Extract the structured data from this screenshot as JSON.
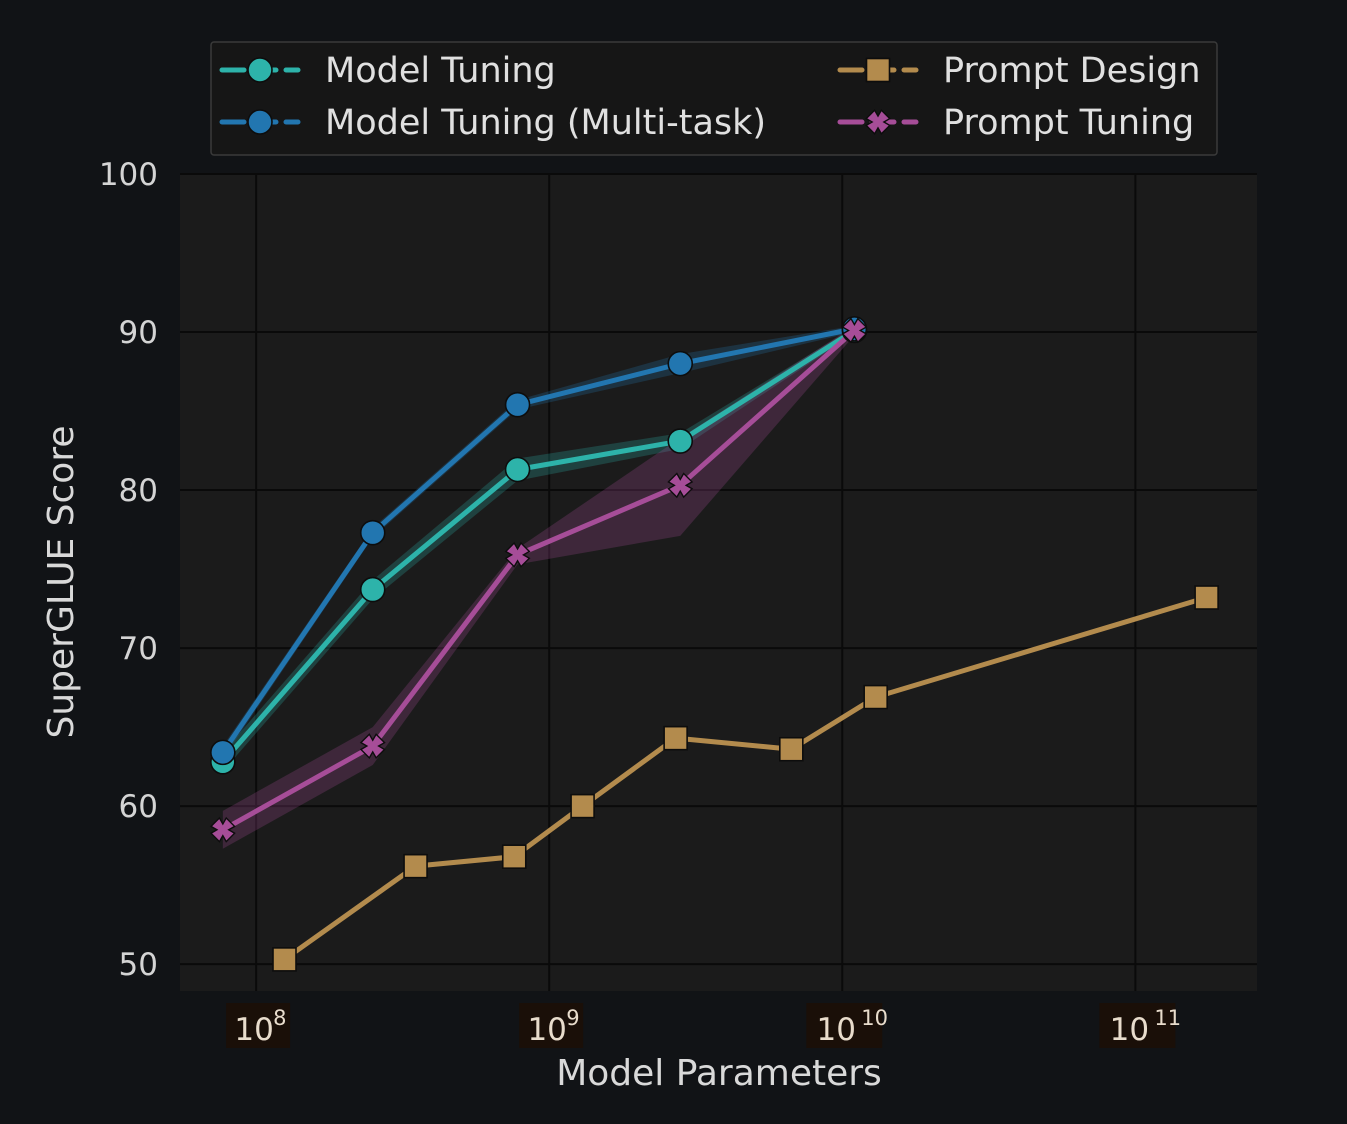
{
  "chart_data": {
    "type": "line",
    "xlabel": "Model Parameters",
    "ylabel": "SuperGLUE Score",
    "xscale": "log",
    "xlim": [
      55000000,
      260000000000
    ],
    "ylim": [
      48.3,
      100
    ],
    "grid": true,
    "legend_position": "top, above plot",
    "x_ticks": [
      {
        "value": 100000000,
        "base": "10",
        "exp": "8"
      },
      {
        "value": 1000000000,
        "base": "10",
        "exp": "9"
      },
      {
        "value": 10000000000,
        "base": "10",
        "exp": "10"
      },
      {
        "value": 100000000000,
        "base": "10",
        "exp": "11"
      }
    ],
    "y_ticks": [
      {
        "value": 50,
        "label": "50"
      },
      {
        "value": 60,
        "label": "60"
      },
      {
        "value": 70,
        "label": "70"
      },
      {
        "value": 80,
        "label": "80"
      },
      {
        "value": 90,
        "label": "90"
      },
      {
        "value": 100,
        "label": "100"
      }
    ],
    "series": [
      {
        "name": "Model Tuning",
        "color": "#2db3aa",
        "marker": "circle",
        "x": [
          77000000,
          250000000,
          780000000,
          2800000000,
          11000000000
        ],
        "y": [
          62.8,
          73.7,
          81.3,
          83.1,
          90.1
        ],
        "band_low": [
          62.2,
          73.1,
          80.6,
          82.6,
          89.9
        ],
        "band_high": [
          63.4,
          74.3,
          82.0,
          83.6,
          90.3
        ]
      },
      {
        "name": "Model Tuning (Multi-task)",
        "color": "#2276b0",
        "marker": "circle",
        "x": [
          77000000,
          250000000,
          780000000,
          2800000000,
          11000000000
        ],
        "y": [
          63.4,
          77.3,
          85.4,
          88.0,
          90.2
        ],
        "band_low": [
          63.0,
          77.0,
          85.1,
          87.4,
          90.0
        ],
        "band_high": [
          63.8,
          77.6,
          85.7,
          88.6,
          90.4
        ]
      },
      {
        "name": "Prompt Design",
        "color": "#b38b4d",
        "marker": "square",
        "x": [
          125000000,
          350000000,
          760000000,
          1300000000,
          2700000000,
          6700000000,
          13000000000,
          175000000000
        ],
        "y": [
          50.3,
          56.2,
          56.8,
          60.0,
          64.3,
          63.6,
          66.9,
          73.2
        ]
      },
      {
        "name": "Prompt Tuning",
        "color": "#a64d98",
        "marker": "x",
        "x": [
          77000000,
          250000000,
          780000000,
          2800000000,
          11000000000
        ],
        "y": [
          58.5,
          63.8,
          75.9,
          80.3,
          90.1
        ],
        "band_low": [
          57.3,
          62.6,
          75.3,
          77.1,
          89.8
        ],
        "band_high": [
          59.7,
          65.0,
          76.3,
          83.3,
          90.4
        ]
      }
    ],
    "legend": [
      {
        "label": "Model Tuning",
        "series": 0
      },
      {
        "label": "Prompt Design",
        "series": 2
      },
      {
        "label": "Model Tuning (Multi-task)",
        "series": 1
      },
      {
        "label": "Prompt Tuning",
        "series": 3
      }
    ],
    "colors": {
      "page_background": "#111316",
      "plot_background": "#1b1b1b",
      "grid": "#0a0a0a",
      "text": "#d4d4d4",
      "tick_label_box": "#1a0f08"
    }
  }
}
